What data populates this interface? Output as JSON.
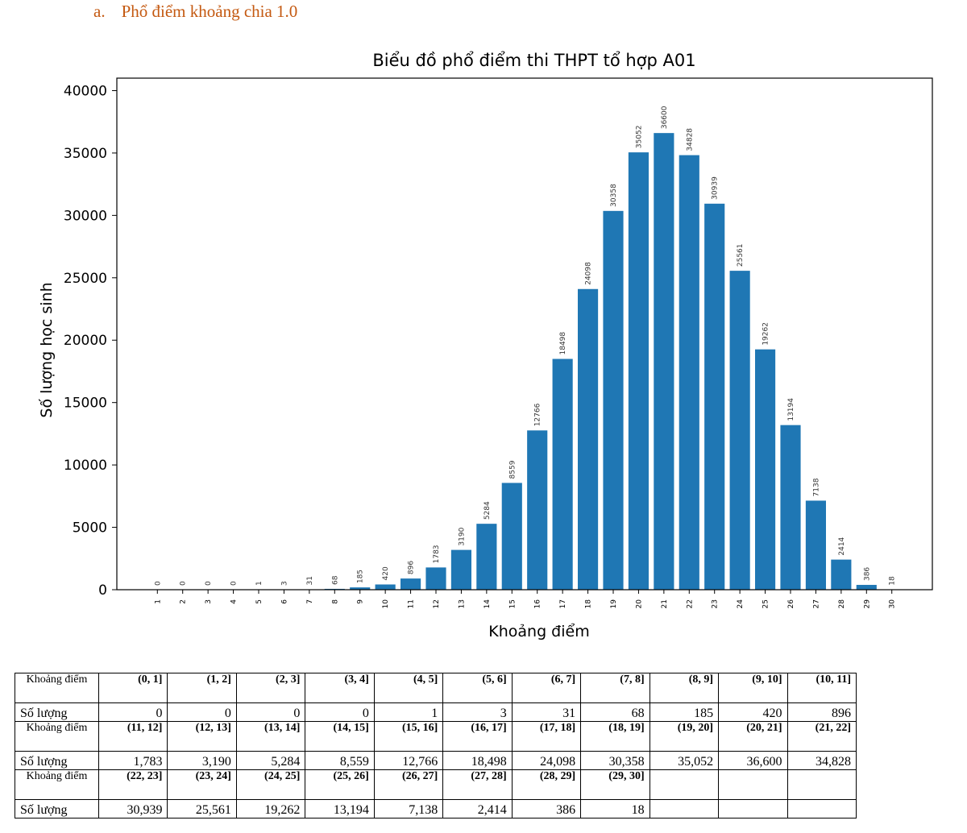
{
  "heading": {
    "letter": "a.",
    "text": "Phổ điểm khoảng chia 1.0"
  },
  "chart_data": {
    "type": "bar",
    "title": "Biểu đồ phổ điểm thi THPT tổ hợp A01",
    "xlabel": "Khoảng điểm",
    "ylabel": "Số lượng học sinh",
    "categories": [
      "1",
      "2",
      "3",
      "4",
      "5",
      "6",
      "7",
      "8",
      "9",
      "10",
      "11",
      "12",
      "13",
      "14",
      "15",
      "16",
      "17",
      "18",
      "19",
      "20",
      "21",
      "22",
      "23",
      "24",
      "25",
      "26",
      "27",
      "28",
      "29",
      "30"
    ],
    "values": [
      0,
      0,
      0,
      0,
      1,
      3,
      31,
      68,
      185,
      420,
      896,
      1783,
      3190,
      5284,
      8559,
      12766,
      18498,
      24098,
      30358,
      35052,
      36600,
      34828,
      30939,
      25561,
      19262,
      13194,
      7138,
      2414,
      386,
      18
    ],
    "yticks": [
      0,
      5000,
      10000,
      15000,
      20000,
      25000,
      30000,
      35000,
      40000
    ],
    "ylim": [
      0,
      41000
    ],
    "bar_color": "#1f77b4",
    "grid": false
  },
  "table": {
    "range_header": "Khoảng điểm",
    "count_header": "Số lượng",
    "ranges": [
      [
        "(0, 1]",
        "(1, 2]",
        "(2, 3]",
        "(3, 4]",
        "(4, 5]",
        "(5, 6]",
        "(6, 7]",
        "(7, 8]",
        "(8, 9]",
        "(9, 10]",
        "(10, 11]"
      ],
      [
        "(11, 12]",
        "(12, 13]",
        "(13, 14]",
        "(14, 15]",
        "(15, 16]",
        "(16, 17]",
        "(17, 18]",
        "(18, 19]",
        "(19, 20]",
        "(20, 21]",
        "(21, 22]"
      ],
      [
        "(22, 23]",
        "(23, 24]",
        "(24, 25]",
        "(25, 26]",
        "(26, 27]",
        "(27, 28]",
        "(28, 29]",
        "(29, 30]",
        "",
        "",
        ""
      ]
    ],
    "counts": [
      [
        "0",
        "0",
        "0",
        "0",
        "1",
        "3",
        "31",
        "68",
        "185",
        "420",
        "896"
      ],
      [
        "1,783",
        "3,190",
        "5,284",
        "8,559",
        "12,766",
        "18,498",
        "24,098",
        "30,358",
        "35,052",
        "36,600",
        "34,828"
      ],
      [
        "30,939",
        "25,561",
        "19,262",
        "13,194",
        "7,138",
        "2,414",
        "386",
        "18",
        "",
        "",
        ""
      ]
    ]
  }
}
